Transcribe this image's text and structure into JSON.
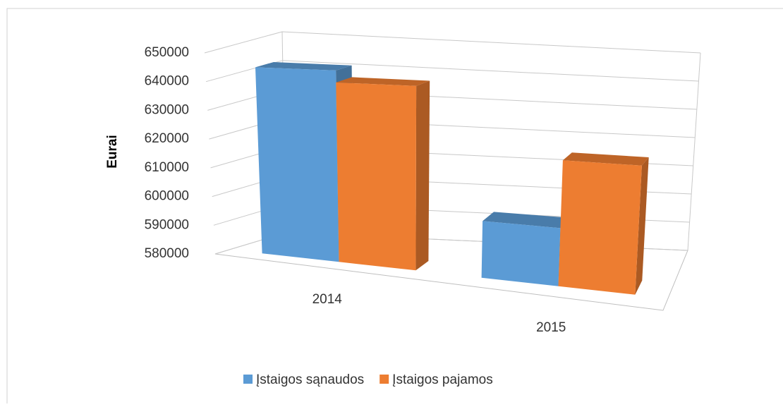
{
  "chart_data": {
    "type": "bar3d",
    "y_axis_label": "Eurai",
    "categories": [
      "2014",
      "2015"
    ],
    "series": [
      {
        "name": "Įstaigos sąnaudos",
        "color": "#5b9bd5",
        "values": [
          644000,
          598000
        ]
      },
      {
        "name": "Įstaigos pajamos",
        "color": "#ed7d31",
        "values": [
          640000,
          619000
        ]
      }
    ],
    "ylim": [
      580000,
      650000
    ],
    "yticks": [
      580000,
      590000,
      600000,
      610000,
      620000,
      630000,
      640000,
      650000
    ],
    "grid": true,
    "legend": "bottom"
  }
}
